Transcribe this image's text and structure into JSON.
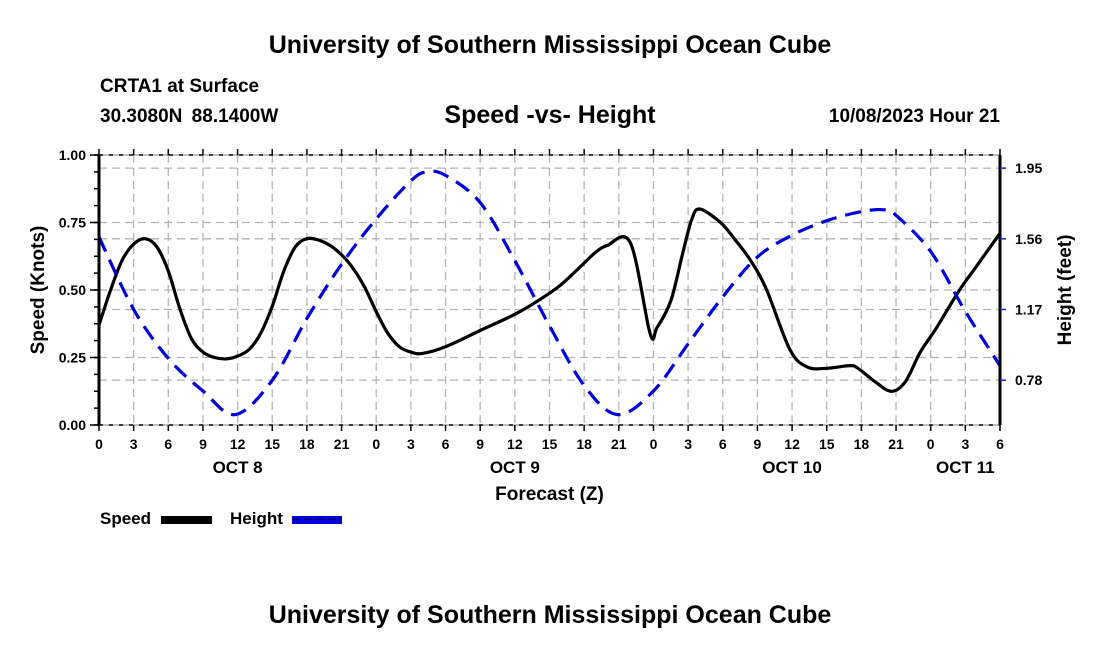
{
  "header": {
    "title": "University of Southern Mississippi Ocean Cube",
    "station": "CRTA1 at Surface",
    "coordinates": "30.3080N  88.1400W",
    "subtitle": "Speed -vs- Height",
    "datetime": "10/08/2023 Hour 21"
  },
  "footer": {
    "title": "University of Southern Mississippi Ocean Cube"
  },
  "legend": {
    "items": [
      {
        "label": "Speed",
        "color": "#000000",
        "style": "solid"
      },
      {
        "label": "Height",
        "color": "#0000d8",
        "style": "dashed"
      }
    ]
  },
  "chart_data": {
    "type": "line",
    "title": "Speed -vs- Height",
    "xlabel": "Forecast (Z)",
    "ylabel": "Speed (Knots)",
    "y2label": "Height (feet)",
    "xlim": [
      0,
      78
    ],
    "ylim": [
      0,
      1.0
    ],
    "y2lim": [
      0.5325,
      2.0225
    ],
    "grid": true,
    "legend_position": "bottom-left",
    "x_ticks": [
      0,
      3,
      6,
      9,
      12,
      15,
      18,
      21,
      24,
      27,
      30,
      33,
      36,
      39,
      42,
      45,
      48,
      51,
      54,
      57,
      60,
      63,
      66,
      69,
      72,
      75,
      78
    ],
    "x_tick_labels": [
      "0",
      "3",
      "6",
      "9",
      "12",
      "15",
      "18",
      "21",
      "0",
      "3",
      "6",
      "9",
      "12",
      "15",
      "18",
      "21",
      "0",
      "3",
      "6",
      "9",
      "12",
      "15",
      "18",
      "21",
      "0",
      "3",
      "6"
    ],
    "date_labels": [
      {
        "label": "OCT 8",
        "x": 12
      },
      {
        "label": "OCT 9",
        "x": 36
      },
      {
        "label": "OCT 10",
        "x": 60
      },
      {
        "label": "OCT 11",
        "x": 75
      }
    ],
    "y_ticks": [
      0,
      0.25,
      0.5,
      0.75,
      1.0
    ],
    "y_tick_labels": [
      "0.00",
      "0.25",
      "0.50",
      "0.75",
      "1.00"
    ],
    "y2_ticks": [
      0.78,
      1.17,
      1.56,
      1.95
    ],
    "y2_tick_labels": [
      "0.78",
      "1.17",
      "1.56",
      "1.95"
    ],
    "series": [
      {
        "name": "Speed",
        "axis": "left",
        "color": "#000000",
        "style": "solid",
        "x": [
          0,
          1,
          2,
          3,
          4,
          5,
          6,
          7,
          8,
          9,
          10,
          11,
          12,
          13,
          14,
          15,
          16,
          17,
          18,
          19,
          20,
          21,
          22,
          23,
          24,
          25,
          26,
          27,
          28,
          30,
          33,
          36,
          38,
          40,
          42,
          43,
          44,
          46,
          47.7,
          48.3,
          49.5,
          50.5,
          51.3,
          52,
          53.8,
          55,
          56.4,
          57.8,
          59.8,
          61.3,
          63,
          65,
          65.7,
          67.2,
          68.6,
          69.8,
          71.1,
          72.5,
          74.5,
          76,
          78
        ],
        "values": [
          0.37,
          0.5,
          0.61,
          0.67,
          0.69,
          0.66,
          0.57,
          0.43,
          0.32,
          0.27,
          0.25,
          0.245,
          0.255,
          0.28,
          0.34,
          0.44,
          0.57,
          0.66,
          0.69,
          0.685,
          0.665,
          0.63,
          0.58,
          0.51,
          0.42,
          0.34,
          0.29,
          0.27,
          0.265,
          0.29,
          0.35,
          0.41,
          0.46,
          0.52,
          0.6,
          0.64,
          0.665,
          0.675,
          0.34,
          0.36,
          0.46,
          0.63,
          0.76,
          0.8,
          0.75,
          0.69,
          0.61,
          0.5,
          0.28,
          0.215,
          0.21,
          0.22,
          0.21,
          0.16,
          0.125,
          0.16,
          0.27,
          0.36,
          0.5,
          0.59,
          0.71
        ]
      },
      {
        "name": "Height",
        "axis": "right",
        "color": "#0000d8",
        "style": "dashed",
        "x": [
          0,
          3,
          6,
          9,
          11.8,
          15,
          18,
          21,
          24,
          27,
          28.4,
          30,
          33,
          36,
          39,
          42,
          44.9,
          48,
          51,
          54,
          57,
          60,
          63,
          66,
          68,
          69,
          72,
          75,
          78
        ],
        "values": [
          1.57,
          1.17,
          0.9,
          0.72,
          0.59,
          0.78,
          1.12,
          1.42,
          1.67,
          1.88,
          1.93,
          1.91,
          1.76,
          1.44,
          1.08,
          0.75,
          0.59,
          0.72,
          0.98,
          1.24,
          1.46,
          1.58,
          1.66,
          1.71,
          1.72,
          1.69,
          1.49,
          1.16,
          0.86
        ]
      }
    ]
  }
}
